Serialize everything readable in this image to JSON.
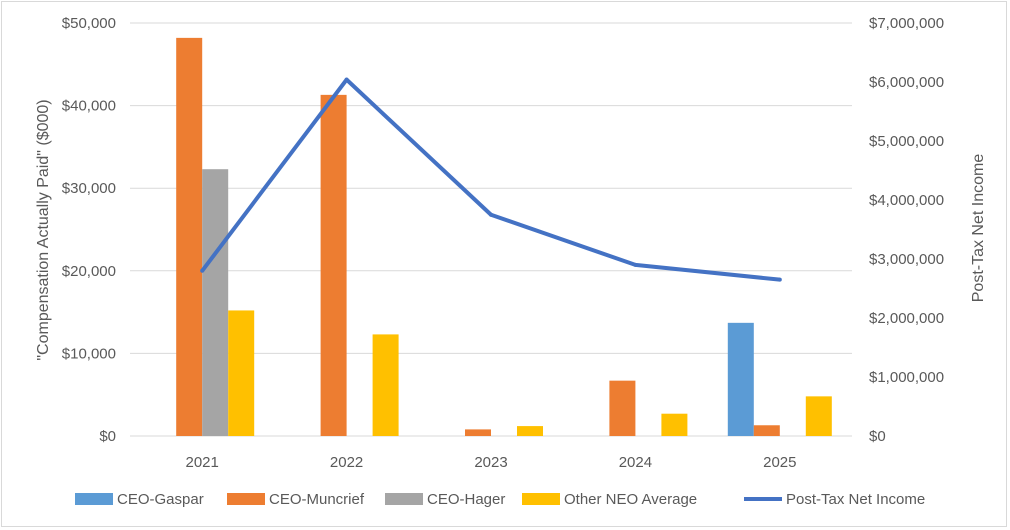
{
  "chart_data": {
    "type": "bar",
    "categories": [
      "2021",
      "2022",
      "2023",
      "2024",
      "2025"
    ],
    "series": [
      {
        "name": "CEO-Gaspar",
        "type": "bar",
        "axis": "left",
        "color": "#5B9BD5",
        "values": [
          null,
          null,
          null,
          null,
          13700
        ]
      },
      {
        "name": "CEO-Muncrief",
        "type": "bar",
        "axis": "left",
        "color": "#ED7D31",
        "values": [
          48200,
          41300,
          800,
          6700,
          1300
        ]
      },
      {
        "name": "CEO-Hager",
        "type": "bar",
        "axis": "left",
        "color": "#A5A5A5",
        "values": [
          32300,
          null,
          null,
          null,
          null
        ]
      },
      {
        "name": "Other NEO Average",
        "type": "bar",
        "axis": "left",
        "color": "#FFC000",
        "values": [
          15200,
          12300,
          1200,
          2700,
          4800
        ]
      },
      {
        "name": "Post-Tax Net Income",
        "type": "line",
        "axis": "right",
        "color": "#4472C4",
        "values": [
          2800000,
          6040000,
          3750000,
          2900000,
          2650000
        ]
      }
    ],
    "y_left": {
      "label": "\"Compensation Actually Paid\" ($000)",
      "range": [
        0,
        50000
      ],
      "ticks": [
        0,
        10000,
        20000,
        30000,
        40000,
        50000
      ],
      "tick_labels": [
        "$0",
        "$10,000",
        "$20,000",
        "$30,000",
        "$40,000",
        "$50,000"
      ]
    },
    "y_right": {
      "label": "Post-Tax Net Income",
      "range": [
        0,
        7000000
      ],
      "ticks": [
        0,
        1000000,
        2000000,
        3000000,
        4000000,
        5000000,
        6000000,
        7000000
      ],
      "tick_labels": [
        "$0",
        "$1,000,000",
        "$2,000,000",
        "$3,000,000",
        "$4,000,000",
        "$5,000,000",
        "$6,000,000",
        "$7,000,000"
      ]
    },
    "grid": true,
    "legend": "bottom"
  }
}
